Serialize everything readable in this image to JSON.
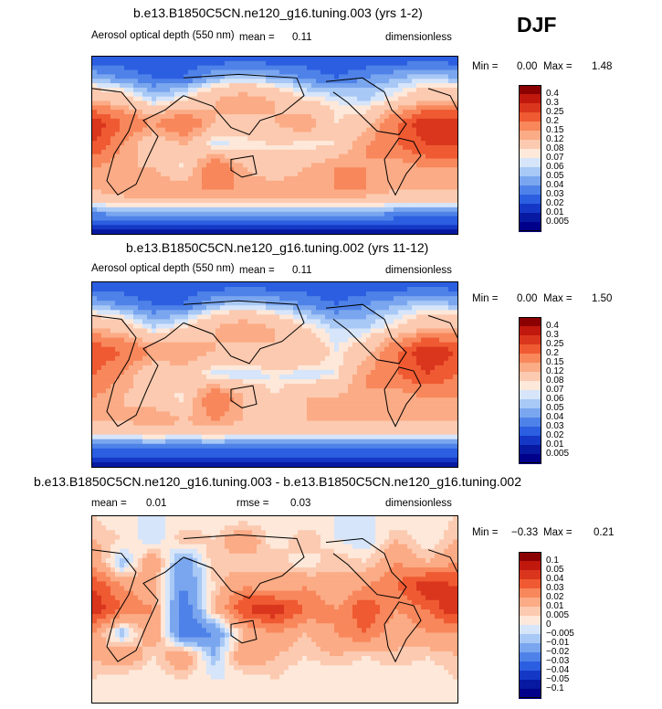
{
  "season_label": "DJF",
  "panels": [
    {
      "title": "b.e13.B1850C5CN.ne120_g16.tuning.003 (yrs 1-2)",
      "field_name": "Aerosol optical depth (550 nm)",
      "stat1_label": "mean =",
      "stat1_value": "0.11",
      "units": "dimensionless",
      "min_label": "Min =",
      "min_value": "0.00",
      "max_label": "Max =",
      "max_value": "1.48",
      "colorbar": {
        "labels": [
          "0.4",
          "0.3",
          "0.25",
          "0.2",
          "0.15",
          "0.12",
          "0.08",
          "0.07",
          "0.06",
          "0.05",
          "0.04",
          "0.03",
          "0.02",
          "0.01",
          "0.005"
        ],
        "colors": [
          "#8b0000",
          "#c1180e",
          "#d9361d",
          "#ef5a32",
          "#f8875c",
          "#fbab85",
          "#fccab0",
          "#fde8da",
          "#d6e5fa",
          "#a8c8f5",
          "#7aa6ef",
          "#4f82e8",
          "#2b5ee0",
          "#1438c5",
          "#0619a0",
          "#00008b"
        ]
      },
      "chart_data": {
        "type": "heatmap",
        "title": "b.e13.B1850C5CN.ne120_g16.tuning.003 (yrs 1-2)",
        "variable": "Aerosol optical depth (550 nm)",
        "units": "dimensionless",
        "season": "DJF",
        "mean": 0.11,
        "min": 0.0,
        "max": 1.48,
        "contour_levels": [
          0.005,
          0.01,
          0.02,
          0.03,
          0.04,
          0.05,
          0.06,
          0.07,
          0.08,
          0.12,
          0.15,
          0.2,
          0.25,
          0.3,
          0.4
        ],
        "grid_lat_deg": [
          80,
          60,
          40,
          20,
          0,
          -20,
          -40,
          -60,
          -80
        ],
        "grid_lon_deg": [
          0,
          30,
          60,
          90,
          120,
          150,
          180,
          210,
          240,
          270,
          300,
          330
        ],
        "values": [
          [
            0.02,
            0.02,
            0.02,
            0.02,
            0.02,
            0.02,
            0.02,
            0.02,
            0.02,
            0.02,
            0.02,
            0.02
          ],
          [
            0.05,
            0.04,
            0.03,
            0.03,
            0.05,
            0.06,
            0.05,
            0.04,
            0.03,
            0.04,
            0.05,
            0.06
          ],
          [
            0.12,
            0.1,
            0.06,
            0.08,
            0.12,
            0.15,
            0.12,
            0.08,
            0.07,
            0.06,
            0.08,
            0.12
          ],
          [
            0.3,
            0.2,
            0.15,
            0.2,
            0.12,
            0.1,
            0.12,
            0.15,
            0.08,
            0.1,
            0.2,
            0.3
          ],
          [
            0.25,
            0.15,
            0.08,
            0.12,
            0.06,
            0.07,
            0.08,
            0.07,
            0.08,
            0.15,
            0.2,
            0.25
          ],
          [
            0.15,
            0.12,
            0.12,
            0.07,
            0.2,
            0.12,
            0.08,
            0.12,
            0.15,
            0.15,
            0.12,
            0.15
          ],
          [
            0.12,
            0.15,
            0.15,
            0.15,
            0.15,
            0.15,
            0.15,
            0.15,
            0.15,
            0.15,
            0.12,
            0.12
          ],
          [
            0.04,
            0.05,
            0.05,
            0.05,
            0.05,
            0.05,
            0.05,
            0.05,
            0.05,
            0.05,
            0.04,
            0.04
          ],
          [
            0.005,
            0.005,
            0.005,
            0.005,
            0.005,
            0.005,
            0.005,
            0.005,
            0.005,
            0.005,
            0.005,
            0.005
          ]
        ]
      }
    },
    {
      "title": "b.e13.B1850C5CN.ne120_g16.tuning.002 (yrs 11-12)",
      "field_name": "Aerosol optical depth (550 nm)",
      "stat1_label": "mean =",
      "stat1_value": "0.11",
      "units": "dimensionless",
      "min_label": "Min =",
      "min_value": "0.00",
      "max_label": "Max =",
      "max_value": "1.50",
      "colorbar": {
        "labels": [
          "0.4",
          "0.3",
          "0.25",
          "0.2",
          "0.15",
          "0.12",
          "0.08",
          "0.07",
          "0.06",
          "0.05",
          "0.04",
          "0.03",
          "0.02",
          "0.01",
          "0.005"
        ],
        "colors": [
          "#8b0000",
          "#c1180e",
          "#d9361d",
          "#ef5a32",
          "#f8875c",
          "#fbab85",
          "#fccab0",
          "#fde8da",
          "#d6e5fa",
          "#a8c8f5",
          "#7aa6ef",
          "#4f82e8",
          "#2b5ee0",
          "#1438c5",
          "#0619a0",
          "#00008b"
        ]
      },
      "chart_data": {
        "type": "heatmap",
        "title": "b.e13.B1850C5CN.ne120_g16.tuning.002 (yrs 11-12)",
        "variable": "Aerosol optical depth (550 nm)",
        "units": "dimensionless",
        "season": "DJF",
        "mean": 0.11,
        "min": 0.0,
        "max": 1.5,
        "contour_levels": [
          0.005,
          0.01,
          0.02,
          0.03,
          0.04,
          0.05,
          0.06,
          0.07,
          0.08,
          0.12,
          0.15,
          0.2,
          0.25,
          0.3,
          0.4
        ],
        "grid_lat_deg": [
          80,
          60,
          40,
          20,
          0,
          -20,
          -40,
          -60,
          -80
        ],
        "grid_lon_deg": [
          0,
          30,
          60,
          90,
          120,
          150,
          180,
          210,
          240,
          270,
          300,
          330
        ],
        "values": [
          [
            0.02,
            0.02,
            0.02,
            0.02,
            0.02,
            0.02,
            0.02,
            0.02,
            0.02,
            0.02,
            0.02,
            0.02
          ],
          [
            0.05,
            0.04,
            0.03,
            0.03,
            0.05,
            0.06,
            0.05,
            0.04,
            0.03,
            0.04,
            0.05,
            0.06
          ],
          [
            0.12,
            0.1,
            0.06,
            0.08,
            0.12,
            0.15,
            0.12,
            0.08,
            0.06,
            0.06,
            0.08,
            0.12
          ],
          [
            0.25,
            0.2,
            0.15,
            0.15,
            0.12,
            0.1,
            0.12,
            0.12,
            0.07,
            0.1,
            0.2,
            0.3
          ],
          [
            0.2,
            0.15,
            0.08,
            0.1,
            0.06,
            0.06,
            0.07,
            0.06,
            0.07,
            0.15,
            0.2,
            0.25
          ],
          [
            0.15,
            0.12,
            0.1,
            0.07,
            0.2,
            0.12,
            0.08,
            0.12,
            0.12,
            0.15,
            0.12,
            0.15
          ],
          [
            0.12,
            0.12,
            0.15,
            0.12,
            0.15,
            0.12,
            0.12,
            0.12,
            0.12,
            0.12,
            0.12,
            0.12
          ],
          [
            0.04,
            0.04,
            0.04,
            0.04,
            0.04,
            0.04,
            0.04,
            0.04,
            0.04,
            0.04,
            0.04,
            0.04
          ],
          [
            0.005,
            0.005,
            0.005,
            0.005,
            0.005,
            0.005,
            0.005,
            0.005,
            0.005,
            0.005,
            0.005,
            0.005
          ]
        ]
      }
    },
    {
      "title": "b.e13.B1850C5CN.ne120_g16.tuning.003 - b.e13.B1850C5CN.ne120_g16.tuning.002",
      "field_name": "",
      "stat1_label": "mean =",
      "stat1_value": "0.01",
      "stat2_label": "rmse =",
      "stat2_value": "0.03",
      "units": "dimensionless",
      "min_label": "Min =",
      "min_value": "−0.33",
      "max_label": "Max =",
      "max_value": "0.21",
      "colorbar": {
        "labels": [
          "0.1",
          "0.05",
          "0.04",
          "0.03",
          "0.02",
          "0.01",
          "0.005",
          "0",
          "−0.005",
          "−0.01",
          "−0.02",
          "−0.03",
          "−0.04",
          "−0.05",
          "−0.1"
        ],
        "colors": [
          "#8b0000",
          "#c1180e",
          "#d9361d",
          "#ef5a32",
          "#f8875c",
          "#fbab85",
          "#fccab0",
          "#fde8da",
          "#d6e5fa",
          "#a8c8f5",
          "#7aa6ef",
          "#4f82e8",
          "#2b5ee0",
          "#1438c5",
          "#0619a0",
          "#00008b"
        ]
      },
      "chart_data": {
        "type": "heatmap",
        "title": "b.e13.B1850C5CN.ne120_g16.tuning.003 - b.e13.B1850C5CN.ne120_g16.tuning.002",
        "units": "dimensionless",
        "season": "DJF",
        "mean": 0.01,
        "rmse": 0.03,
        "min": -0.33,
        "max": 0.21,
        "contour_levels": [
          -0.1,
          -0.05,
          -0.04,
          -0.03,
          -0.02,
          -0.01,
          -0.005,
          0,
          0.005,
          0.01,
          0.02,
          0.03,
          0.04,
          0.05,
          0.1
        ],
        "grid_lat_deg": [
          80,
          60,
          40,
          20,
          0,
          -20,
          -40,
          -60,
          -80
        ],
        "grid_lon_deg": [
          0,
          30,
          60,
          90,
          120,
          150,
          180,
          210,
          240,
          270,
          300,
          330
        ],
        "values": [
          [
            0.005,
            0.0,
            0.0,
            0.0,
            0.0,
            0.0,
            0.0,
            0.0,
            0.0,
            0.0,
            0.0,
            0.0
          ],
          [
            0.01,
            0.005,
            -0.005,
            0.01,
            0.005,
            0.02,
            0.0,
            0.01,
            0.0,
            -0.005,
            0.01,
            0.0
          ],
          [
            0.02,
            -0.01,
            0.02,
            -0.02,
            0.01,
            0.005,
            0.01,
            0.0,
            0.01,
            0.005,
            0.02,
            0.01
          ],
          [
            0.04,
            0.02,
            0.01,
            -0.02,
            0.005,
            0.02,
            0.01,
            0.02,
            0.01,
            0.02,
            0.03,
            0.05
          ],
          [
            0.05,
            0.03,
            0.02,
            -0.03,
            0.01,
            0.04,
            0.05,
            0.03,
            0.02,
            0.04,
            0.02,
            0.03
          ],
          [
            0.02,
            -0.01,
            0.02,
            -0.03,
            -0.02,
            0.01,
            0.02,
            0.01,
            0.02,
            0.03,
            0.01,
            0.02
          ],
          [
            0.01,
            0.02,
            0.005,
            0.02,
            -0.01,
            0.02,
            0.01,
            0.005,
            0.01,
            0.005,
            0.01,
            0.005
          ],
          [
            0.005,
            0.0,
            0.0,
            0.005,
            0.0,
            0.0,
            0.005,
            0.0,
            0.0,
            0.0,
            0.0,
            0.0
          ],
          [
            0.0,
            0.0,
            0.0,
            0.0,
            0.0,
            0.0,
            0.0,
            0.0,
            0.0,
            0.0,
            0.0,
            0.0
          ]
        ]
      }
    }
  ]
}
